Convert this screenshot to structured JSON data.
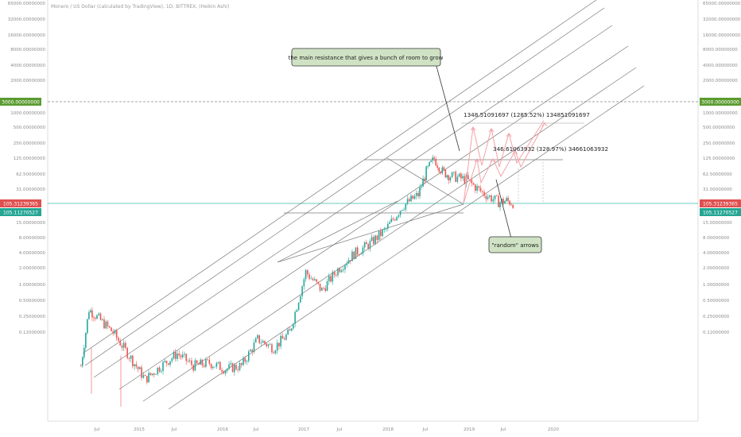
{
  "legend": "Monero / US Dollar (calculated by TradingView), 1D, BITTREX, (Heikin Ashi)",
  "price_tags": {
    "level_line": "3000.00000000",
    "close_red": "105.31239365",
    "close_green": "105.11270527"
  },
  "colors": {
    "up": "#26a69a",
    "down": "#ef5350",
    "tag_green": "#5a9b2f",
    "tag_red": "#e05050",
    "tag_teal": "#24a693",
    "channel": "#7a7a7a",
    "arrow": "#f4a3a8",
    "note_bg": "#cfe3c4"
  },
  "annotations": {
    "resistance_note": "the main resistance that gives a bunch of room to grow",
    "arrows_note": "\"random\" arrows",
    "measure_1": "1348.51091697 (1285.52%) 134851091697",
    "measure_2": "346.61063932 (328.97%) 34661063932"
  },
  "chart_data": {
    "type": "candlestick",
    "title": "Monero / US Dollar (calculated by TradingView), 1D, BITTREX, (Heikin Ashi)",
    "y_scale": "log",
    "y_ticks": [
      "65000.00000000",
      "32000.00000000",
      "16000.00000000",
      "8000.00000000",
      "4000.00000000",
      "3000.00000000",
      "2000.00000000",
      "1000.00000000",
      "500.00000000",
      "250.00000000",
      "125.00000000",
      "105.31239365",
      "105.11270527",
      "62.50000000",
      "31.00000000",
      "15.00000000",
      "8.00000000",
      "4.00000000",
      "2.00000000",
      "1.00000000",
      "0.50000000",
      "0.25000000",
      "0.12000000"
    ],
    "x_ticks": [
      "Jul",
      "2015",
      "Jul",
      "2016",
      "Jul",
      "2017",
      "Jul",
      "2018",
      "Jul",
      "2019",
      "Jul",
      "2020"
    ],
    "price_path": [
      {
        "t": "2014-05",
        "p": 0.5
      },
      {
        "t": "2014-06",
        "p": 3.2
      },
      {
        "t": "2014-07",
        "p": 2.5
      },
      {
        "t": "2014-09",
        "p": 1.5
      },
      {
        "t": "2014-11",
        "p": 0.7
      },
      {
        "t": "2015-01",
        "p": 0.32
      },
      {
        "t": "2015-03",
        "p": 0.5
      },
      {
        "t": "2015-05",
        "p": 0.75
      },
      {
        "t": "2015-07",
        "p": 0.5
      },
      {
        "t": "2015-09",
        "p": 0.55
      },
      {
        "t": "2015-11",
        "p": 0.45
      },
      {
        "t": "2016-01",
        "p": 0.5
      },
      {
        "t": "2016-03",
        "p": 1.2
      },
      {
        "t": "2016-05",
        "p": 0.9
      },
      {
        "t": "2016-07",
        "p": 1.5
      },
      {
        "t": "2016-09",
        "p": 11
      },
      {
        "t": "2016-11",
        "p": 6
      },
      {
        "t": "2017-01",
        "p": 12
      },
      {
        "t": "2017-03",
        "p": 20
      },
      {
        "t": "2017-05",
        "p": 28
      },
      {
        "t": "2017-07",
        "p": 45
      },
      {
        "t": "2017-09",
        "p": 95
      },
      {
        "t": "2017-11",
        "p": 140
      },
      {
        "t": "2017-12",
        "p": 300
      },
      {
        "t": "2018-01",
        "p": 460
      },
      {
        "t": "2018-02",
        "p": 300
      },
      {
        "t": "2018-03",
        "p": 260
      },
      {
        "t": "2018-05",
        "p": 230
      },
      {
        "t": "2018-07",
        "p": 150
      },
      {
        "t": "2018-09",
        "p": 110
      },
      {
        "t": "2018-10",
        "p": 115
      },
      {
        "t": "2018-11",
        "p": 105
      }
    ],
    "horizontal_levels": [
      3000,
      105.31239365
    ],
    "annotations": [
      "the main resistance that gives a bunch of room to grow",
      "\"random\" arrows",
      "1348.51091697 (1285.52%) 134851091697",
      "346.61063932 (328.97%) 34661063932"
    ]
  }
}
